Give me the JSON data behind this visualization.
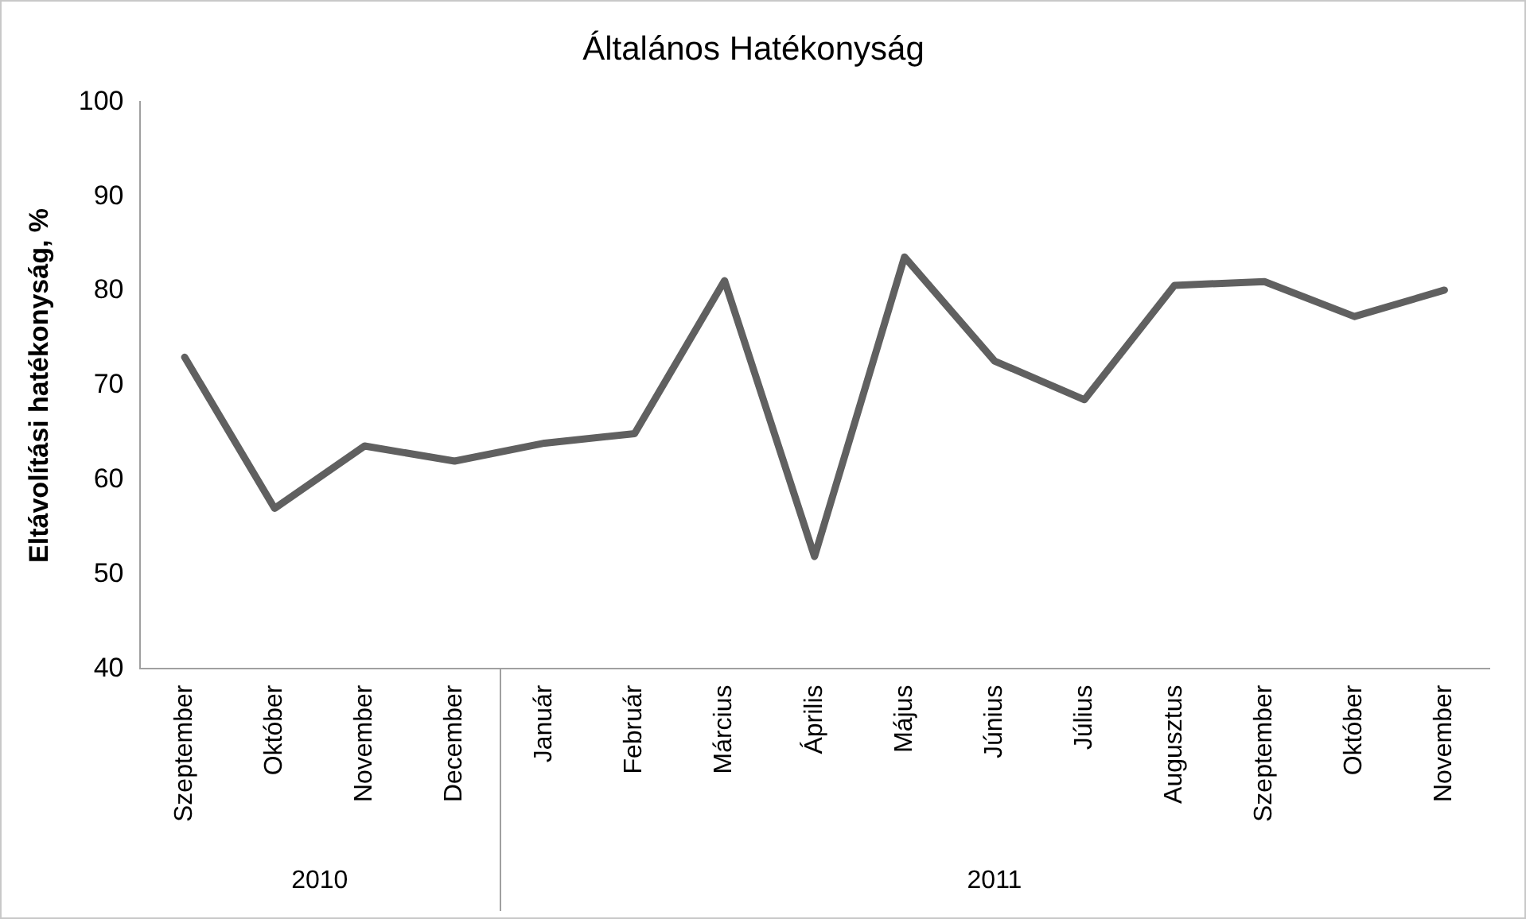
{
  "chart_data": {
    "type": "line",
    "title": "Általános Hatékonyság",
    "ylabel": "Eltávolítási hatékonyság, %",
    "categories": [
      "Szeptember",
      "Október",
      "November",
      "December",
      "Január",
      "Február",
      "Március",
      "Április",
      "Május",
      "Június",
      "Július",
      "Augusztus",
      "Szeptember",
      "Október",
      "November"
    ],
    "series": [
      {
        "color": "#606060",
        "values": [
          73.0,
          57.0,
          63.6,
          62.0,
          63.9,
          64.9,
          81.1,
          51.9,
          83.6,
          72.6,
          68.5,
          80.6,
          81.0,
          77.3,
          80.1
        ]
      }
    ],
    "annotations": [
      "2010",
      "2011"
    ],
    "ylim": [
      40,
      100
    ],
    "yticks": [
      40,
      50,
      60,
      70,
      80,
      90,
      100
    ],
    "grid": false,
    "legend": false,
    "marker": "none",
    "line_style": "solid"
  }
}
